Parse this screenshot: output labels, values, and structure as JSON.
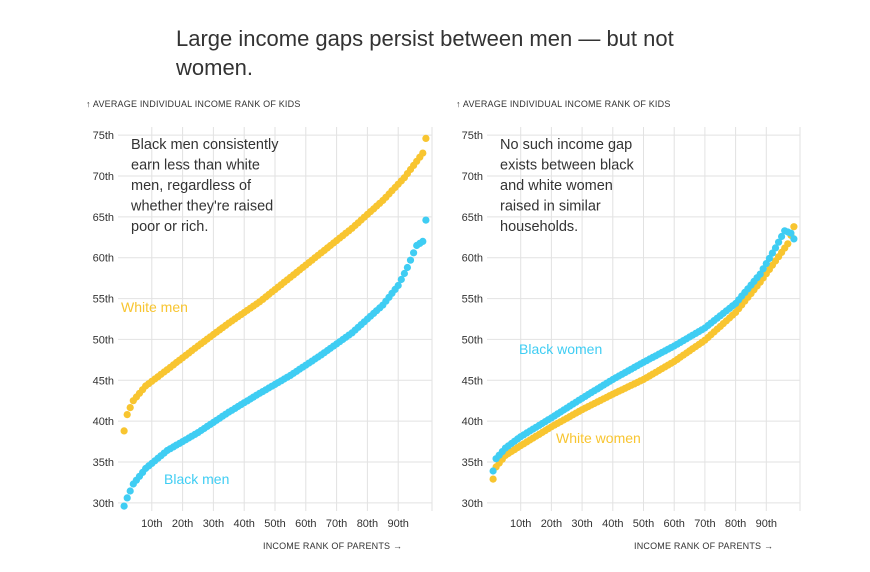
{
  "title": "Large income gaps persist between men — but not women.",
  "colors": {
    "yellow": "#f8c530",
    "blue": "#3fcdf3",
    "grid": "#e2e2e2",
    "text": "#333333"
  },
  "chart_data": [
    {
      "type": "scatter",
      "ylabel": "↑ AVERAGE INDIVIDUAL INCOME RANK OF KIDS",
      "xlabel": "INCOME RANK OF PARENTS →",
      "y_ticks": [
        "30th",
        "35th",
        "40th",
        "45th",
        "50th",
        "55th",
        "60th",
        "65th",
        "70th",
        "75th"
      ],
      "x_ticks": [
        "10th",
        "20th",
        "30th",
        "40th",
        "50th",
        "60th",
        "70th",
        "80th",
        "90th"
      ],
      "xlim": [
        0,
        100
      ],
      "ylim": [
        29,
        76
      ],
      "annotation": [
        "Black men consistently",
        "earn less than white",
        "men, regardless of",
        "whether they're raised",
        "poor or rich."
      ],
      "series": [
        {
          "name": "White men",
          "color": "#f8c530",
          "anchors": [
            [
              1,
              38.8
            ],
            [
              2,
              40.8
            ],
            [
              4,
              42.5
            ],
            [
              8,
              44.3
            ],
            [
              15,
              46.3
            ],
            [
              25,
              49.2
            ],
            [
              35,
              52.0
            ],
            [
              45,
              54.6
            ],
            [
              55,
              57.6
            ],
            [
              65,
              60.6
            ],
            [
              75,
              63.6
            ],
            [
              85,
              67.0
            ],
            [
              92,
              69.8
            ],
            [
              96,
              71.8
            ],
            [
              98,
              72.8
            ],
            [
              99,
              74.6
            ]
          ]
        },
        {
          "name": "Black men",
          "color": "#3fcdf3",
          "anchors": [
            [
              1,
              29.6
            ],
            [
              2,
              30.6
            ],
            [
              4,
              32.3
            ],
            [
              8,
              34.2
            ],
            [
              15,
              36.4
            ],
            [
              25,
              38.6
            ],
            [
              35,
              41.1
            ],
            [
              45,
              43.4
            ],
            [
              55,
              45.6
            ],
            [
              65,
              48.1
            ],
            [
              75,
              50.8
            ],
            [
              85,
              54.2
            ],
            [
              90,
              56.6
            ],
            [
              93,
              58.8
            ],
            [
              96,
              61.5
            ],
            [
              98,
              62.0
            ],
            [
              99,
              64.6
            ]
          ]
        }
      ]
    },
    {
      "type": "scatter",
      "ylabel": "↑ AVERAGE INDIVIDUAL INCOME RANK OF KIDS",
      "xlabel": "INCOME RANK OF PARENTS →",
      "y_ticks": [
        "30th",
        "35th",
        "40th",
        "45th",
        "50th",
        "55th",
        "60th",
        "65th",
        "70th",
        "75th"
      ],
      "x_ticks": [
        "10th",
        "20th",
        "30th",
        "40th",
        "50th",
        "60th",
        "70th",
        "80th",
        "90th"
      ],
      "xlim": [
        0,
        100
      ],
      "ylim": [
        29,
        76
      ],
      "annotation": [
        "No such income gap",
        "exists between black",
        "and white women",
        "raised in similar",
        "households."
      ],
      "series": [
        {
          "name": "White women",
          "color": "#f8c530",
          "anchors": [
            [
              1,
              32.9
            ],
            [
              2,
              34.4
            ],
            [
              5,
              35.8
            ],
            [
              10,
              37.0
            ],
            [
              20,
              39.3
            ],
            [
              30,
              41.4
            ],
            [
              40,
              43.3
            ],
            [
              50,
              45.1
            ],
            [
              60,
              47.3
            ],
            [
              70,
              49.9
            ],
            [
              80,
              53.3
            ],
            [
              88,
              57.0
            ],
            [
              93,
              59.6
            ],
            [
              97,
              61.7
            ],
            [
              99,
              63.8
            ]
          ]
        },
        {
          "name": "Black women",
          "color": "#3fcdf3",
          "anchors": [
            [
              1,
              33.9
            ],
            [
              2,
              35.4
            ],
            [
              5,
              36.7
            ],
            [
              10,
              38.1
            ],
            [
              20,
              40.4
            ],
            [
              30,
              42.8
            ],
            [
              40,
              45.1
            ],
            [
              50,
              47.2
            ],
            [
              60,
              49.2
            ],
            [
              70,
              51.4
            ],
            [
              80,
              54.4
            ],
            [
              88,
              58.0
            ],
            [
              93,
              61.2
            ],
            [
              96,
              63.3
            ],
            [
              98,
              63.0
            ],
            [
              99,
              62.3
            ]
          ]
        }
      ]
    }
  ]
}
